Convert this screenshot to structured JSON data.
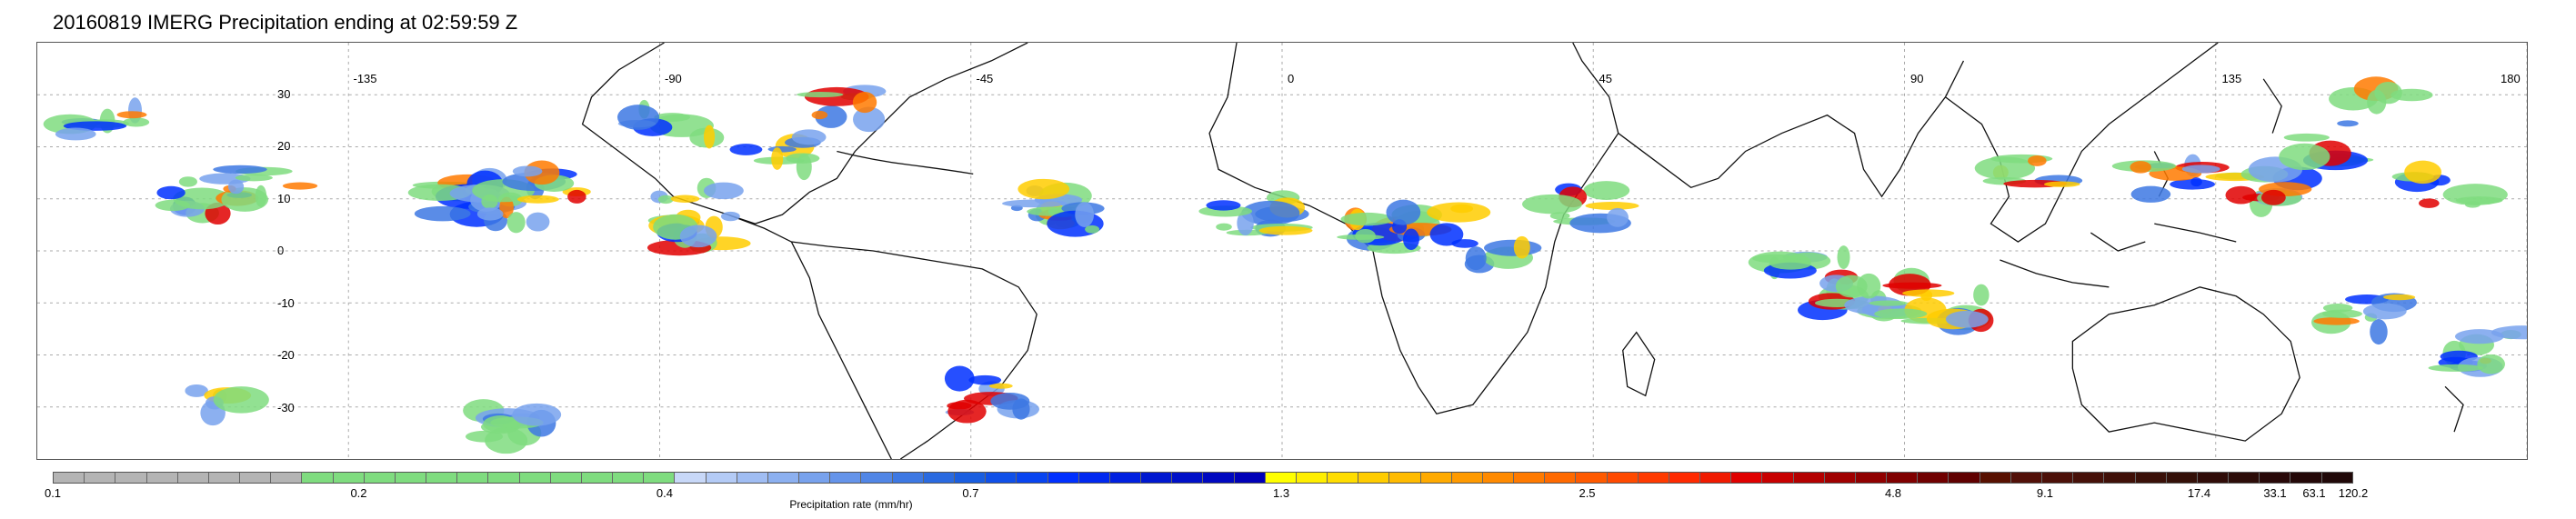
{
  "title": "20160819 IMERG Precipitation ending at 02:59:59 Z",
  "map": {
    "lon_labels": [
      "-135",
      "-90",
      "-45",
      "0",
      "45",
      "90",
      "135",
      "180"
    ],
    "lat_labels": [
      "30",
      "20",
      "10",
      "0",
      "-10",
      "-20",
      "-30"
    ]
  },
  "colorbar": {
    "title": "Precipitation rate (mm/hr)",
    "tick_labels": [
      "0.1",
      "0.2",
      "0.4",
      "0.7",
      "1.3",
      "2.5",
      "4.8",
      "9.1",
      "17.4",
      "33.1",
      "63.1",
      "120.2"
    ],
    "colors": [
      "#b4b4b4",
      "#b4b4b4",
      "#b4b4b4",
      "#b4b4b4",
      "#b4b4b4",
      "#b4b4b4",
      "#b4b4b4",
      "#b4b4b4",
      "#7fdc7f",
      "#7fdc7f",
      "#7fdc7f",
      "#7fdc7f",
      "#7fdc7f",
      "#7fdc7f",
      "#7fdc7f",
      "#7fdc7f",
      "#7fdc7f",
      "#7fdc7f",
      "#7fdc7f",
      "#7fdc7f",
      "#c8d8f8",
      "#b4cbf6",
      "#a0bdf3",
      "#8cb0f0",
      "#78a2ed",
      "#6594ea",
      "#5186e6",
      "#3d78e3",
      "#2a6ae0",
      "#1a5ee0",
      "#1050e8",
      "#0844f0",
      "#0030ff",
      "#0028f0",
      "#0020e0",
      "#0018d0",
      "#0010c8",
      "#0008c0",
      "#0000b8",
      "#ffff00",
      "#ffee00",
      "#ffdd00",
      "#ffcc00",
      "#ffbb00",
      "#ffaa00",
      "#ff9a00",
      "#ff8a00",
      "#ff7a00",
      "#ff6a00",
      "#ff5a00",
      "#ff4a00",
      "#ff3a00",
      "#ff2a00",
      "#f01a00",
      "#e00000",
      "#c80000",
      "#b40000",
      "#a00000",
      "#900000",
      "#800000",
      "#700000",
      "#600000",
      "#581000",
      "#521008",
      "#4c1008",
      "#461008",
      "#401008",
      "#3a1008",
      "#341008",
      "#300c08",
      "#2c0c08",
      "#280808",
      "#240808",
      "#200808"
    ],
    "tick_fractions": [
      0.0,
      0.133,
      0.266,
      0.399,
      0.534,
      0.667,
      0.8,
      0.866,
      0.933,
      0.966,
      0.983,
      1.0
    ]
  }
}
